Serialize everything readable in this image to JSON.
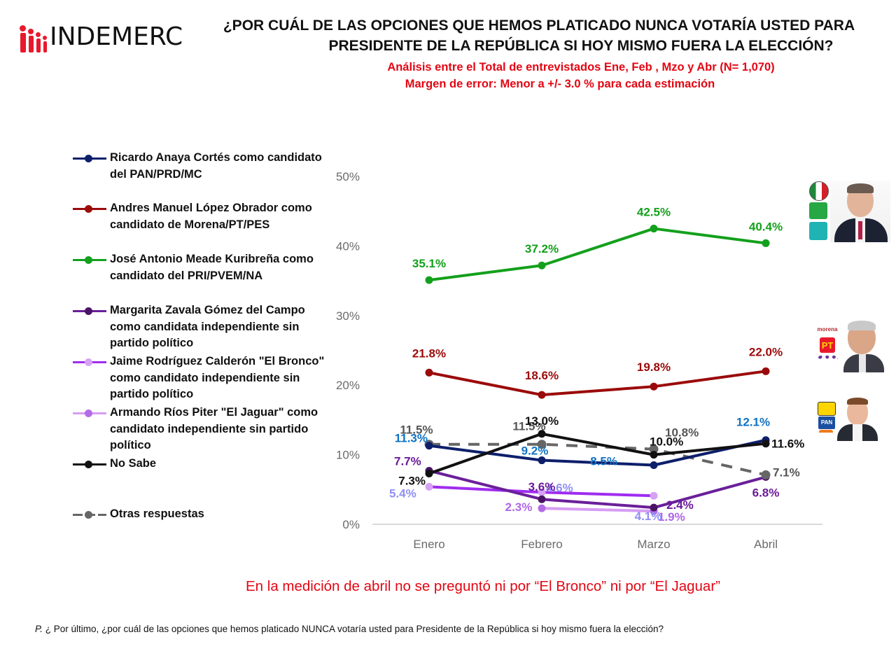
{
  "brand": {
    "logo_text": "INDEMERC",
    "logo_icon": "people-figures-icon",
    "accent_color": "#e8192c"
  },
  "header": {
    "title_line1": "¿POR CUÁL DE LAS OPCIONES QUE HEMOS PLATICADO NUNCA VOTARÍA USTED PARA",
    "title_line2": "PRESIDENTE DE LA REPÚBLICA SI HOY MISMO FUERA LA ELECCIÓN?",
    "subtitle_line1": "Análisis entre el Total de entrevistados Ene, Feb , Mzo y Abr  (N= 1,070)",
    "subtitle_line2": "Margen de error: Menor a +/- 3.0 % para cada estimación",
    "subtitle_color": "#e30613"
  },
  "chart_data": {
    "type": "line",
    "title": "¿POR CUÁL DE LAS OPCIONES QUE HEMOS PLATICADO NUNCA VOTARÍA USTED PARA PRESIDENTE DE LA REPÚBLICA SI HOY MISMO FUERA LA ELECCIÓN?",
    "xlabel": "",
    "ylabel": "",
    "categories": [
      "Enero",
      "Febrero",
      "Marzo",
      "Abril"
    ],
    "ylim": [
      0,
      50
    ],
    "yticks": [
      0,
      10,
      20,
      30,
      40,
      50
    ],
    "ytick_labels": [
      "0%",
      "10%",
      "20%",
      "30%",
      "40%",
      "50%"
    ],
    "grid": false,
    "legend_position": "left",
    "series": [
      {
        "key": "anaya",
        "name": "Ricardo Anaya Cortés como candidato del PAN/PRD/MC",
        "color": "#0d1f6b",
        "label_color": "#1072c4",
        "dashed": false,
        "values": [
          11.3,
          9.2,
          8.5,
          12.1
        ],
        "labels": [
          "11.3%",
          "9.2%",
          "8.5%",
          "12.1%"
        ]
      },
      {
        "key": "amlo",
        "name": "Andres Manuel López Obrador como candidato de Morena/PT/PES",
        "color": "#9b0a0a",
        "label_color": "#9b0a0a",
        "dashed": false,
        "values": [
          21.8,
          18.6,
          19.8,
          22.0
        ],
        "labels": [
          "21.8%",
          "18.6%",
          "19.8%",
          "22.0%"
        ]
      },
      {
        "key": "meade",
        "name": "José Antonio Meade Kuribreña como candidato del PRI/PVEM/NA",
        "color": "#13a01c",
        "label_color": "#13a01c",
        "dashed": false,
        "values": [
          35.1,
          37.2,
          42.5,
          40.4
        ],
        "labels": [
          "35.1%",
          "37.2%",
          "42.5%",
          "40.4%"
        ]
      },
      {
        "key": "zavala",
        "name": "Margarita Zavala Gómez del Campo como candidata independiente sin partido político",
        "color": "#6a1f9a",
        "marker_color": "#4a1466",
        "label_color": "#6a1a9a",
        "dashed": false,
        "values": [
          7.7,
          3.6,
          2.4,
          6.8
        ],
        "labels": [
          "7.7%",
          "3.6%",
          "2.4%",
          "6.8%"
        ]
      },
      {
        "key": "bronco",
        "name": "Jaime Rodríguez Calderón \"El Bronco\" como candidato independiente sin partido político",
        "color": "#a02cf0",
        "marker_color": "#d7a2f5",
        "label_color": "#8f8ff5",
        "dashed": false,
        "values": [
          5.4,
          4.6,
          4.1,
          null
        ],
        "labels": [
          "5.4%",
          "4.6%",
          "4.1%",
          null
        ]
      },
      {
        "key": "jaguar",
        "name": "Armando Ríos Piter \"El Jaguar\" como candidato independiente sin partido político",
        "color": "#d69cf3",
        "marker_color": "#b46ae6",
        "label_color": "#b066e6",
        "dashed": false,
        "values": [
          null,
          2.3,
          1.9,
          null
        ],
        "labels": [
          null,
          "2.3%",
          "1.9%",
          null
        ]
      },
      {
        "key": "nosabe",
        "name": "No Sabe",
        "color": "#111111",
        "label_color": "#111111",
        "dashed": false,
        "values": [
          7.3,
          13.0,
          10.0,
          11.6
        ],
        "labels": [
          "7.3%",
          "13.0%",
          "10.0%",
          "11.6%"
        ]
      },
      {
        "key": "otras",
        "name": "Otras respuestas",
        "color": "#666666",
        "label_color": "#555555",
        "dashed": true,
        "values": [
          11.5,
          11.5,
          10.8,
          7.1
        ],
        "labels": [
          "11.5%",
          "11.5%",
          "10.8%",
          "7.1%"
        ]
      }
    ]
  },
  "legend": {
    "items": [
      {
        "label": "Ricardo Anaya Cortés como candidato del PAN/PRD/MC"
      },
      {
        "label": "Andres Manuel López Obrador como candidato de Morena/PT/PES"
      },
      {
        "label": "José Antonio Meade Kuribreña como candidato del PRI/PVEM/NA"
      },
      {
        "label": "Margarita Zavala Gómez del Campo como candidata independiente sin partido político"
      },
      {
        "label": "Jaime Rodríguez Calderón \"El Bronco\" como candidato independiente sin partido político"
      },
      {
        "label": "Armando Ríos Piter \"El Jaguar\" como candidato independiente sin partido político"
      },
      {
        "label": " No Sabe"
      },
      {
        "label": "Otras respuestas"
      }
    ]
  },
  "candidate_images": [
    {
      "candidate": "meade",
      "party_logos": [
        "PRI",
        "VERDE",
        "alianza"
      ],
      "photo": "candidate-photo-meade"
    },
    {
      "candidate": "amlo",
      "party_logos": [
        "morena",
        "PT",
        "encuentro social"
      ],
      "photo": "candidate-photo-amlo"
    },
    {
      "candidate": "anaya",
      "party_logos": [
        "PRD",
        "PAN",
        "movimiento ciudadano"
      ],
      "photo": "candidate-photo-anaya"
    }
  ],
  "footer": {
    "note": "En la medición de abril no se preguntó ni por “El Bronco” ni por “El Jaguar”",
    "question_prefix": "P.",
    "question": " ¿ Por último, ¿por cuál de las opciones que hemos platicado NUNCA votaría usted para Presidente de la República si hoy mismo fuera la elección?"
  }
}
